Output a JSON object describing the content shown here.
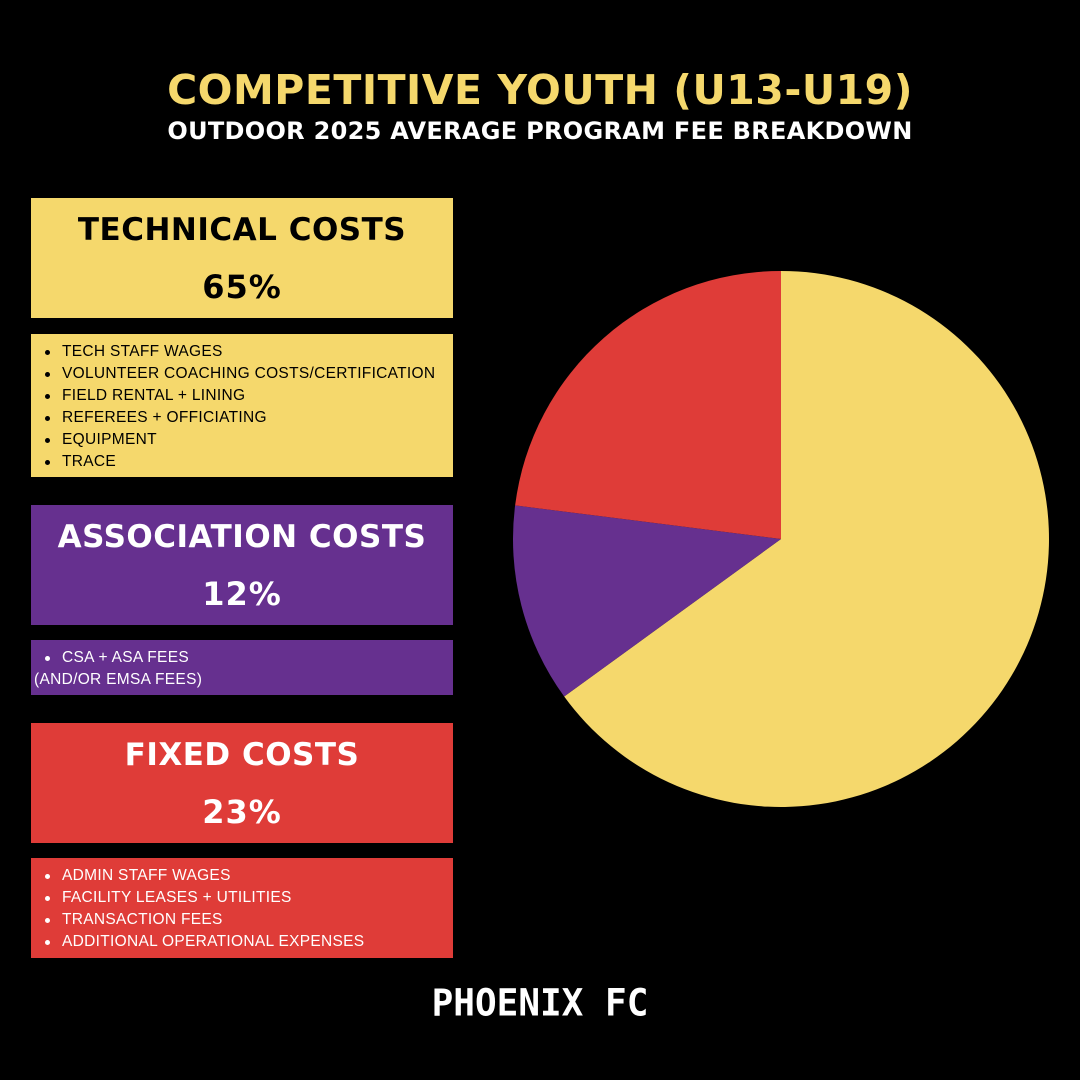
{
  "header": {
    "title": "COMPETITIVE YOUTH (U13-U19)",
    "subtitle": "OUTDOOR 2025 AVERAGE PROGRAM FEE BREAKDOWN"
  },
  "categories": [
    {
      "name": "TECHNICAL COSTS",
      "percent_label": "65%",
      "items": [
        "TECH STAFF WAGES",
        "VOLUNTEER COACHING COSTS/CERTIFICATION",
        "FIELD RENTAL + LINING",
        "REFEREES + OFFICIATING",
        "EQUIPMENT",
        "TRACE"
      ]
    },
    {
      "name": "ASSOCIATION COSTS",
      "percent_label": "12%",
      "items": [
        "CSA + ASA FEES"
      ],
      "extra": "(AND/OR EMSA FEES)"
    },
    {
      "name": "FIXED COSTS",
      "percent_label": "23%",
      "items": [
        "ADMIN STAFF WAGES",
        "FACILITY LEASES + UTILITIES",
        "TRANSACTION FEES",
        "ADDITIONAL OPERATIONAL EXPENSES"
      ]
    }
  ],
  "chart_data": {
    "type": "pie",
    "categories": [
      "TECHNICAL COSTS",
      "ASSOCIATION COSTS",
      "FIXED COSTS"
    ],
    "values": [
      65,
      12,
      23
    ],
    "colors": [
      "#f5d86c",
      "#66308f",
      "#df3c38"
    ],
    "start": "12 o'clock",
    "direction": "clockwise",
    "legend": "left"
  },
  "footer": {
    "logo": "PHOENIX FC"
  }
}
